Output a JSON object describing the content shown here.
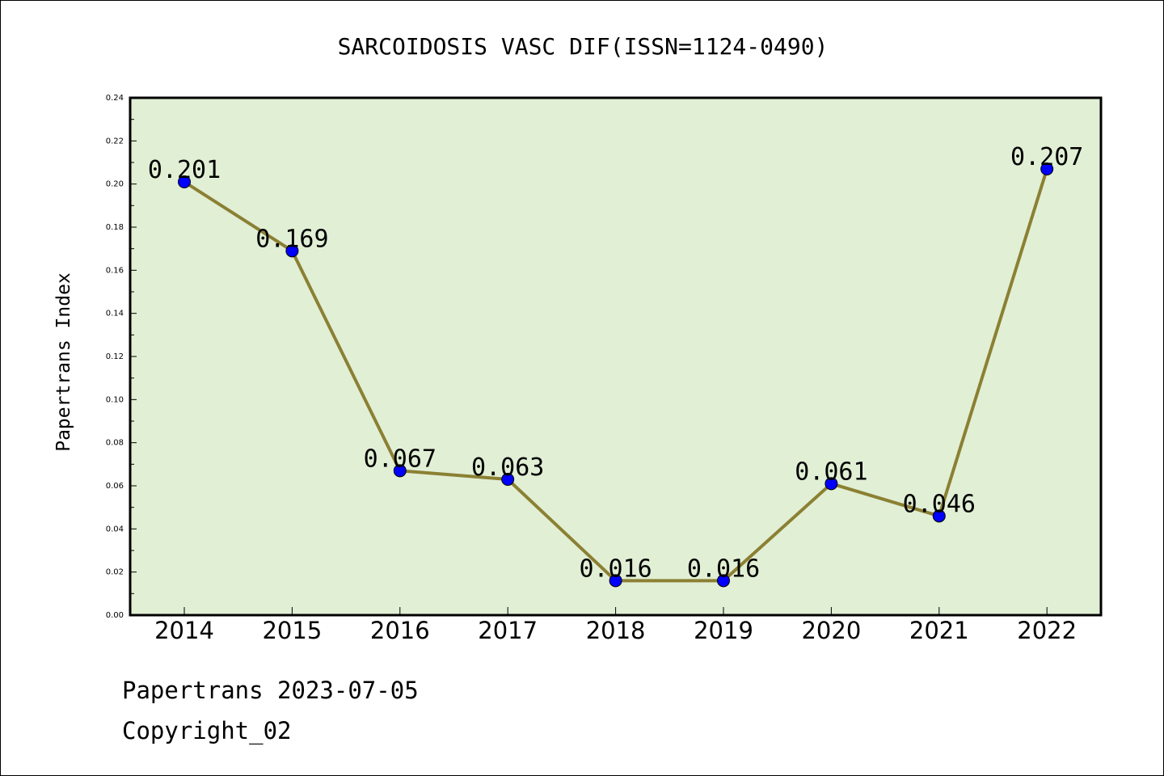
{
  "chart_data": {
    "type": "line",
    "title": "SARCOIDOSIS VASC DIF(ISSN=1124-0490)",
    "xlabel": "",
    "ylabel": "Papertrans Index",
    "categories": [
      "2014",
      "2015",
      "2016",
      "2017",
      "2018",
      "2019",
      "2020",
      "2021",
      "2022"
    ],
    "values": [
      0.201,
      0.169,
      0.067,
      0.063,
      0.016,
      0.016,
      0.061,
      0.046,
      0.207
    ],
    "data_labels": [
      "0.201",
      "0.169",
      "0.067",
      "0.063",
      "0.016",
      "0.016",
      "0.061",
      "0.046",
      "0.207"
    ],
    "ylim": [
      0,
      0.24
    ],
    "yticks": [
      "0.00",
      "0.02",
      "0.04",
      "0.06",
      "0.08",
      "0.10",
      "0.12",
      "0.14",
      "0.16",
      "0.18",
      "0.20",
      "0.22",
      "0.24"
    ],
    "grid": false,
    "colors": {
      "plot_background": "#e1efd5",
      "line": "#8b8033",
      "marker": "#0000ff"
    }
  },
  "footer": {
    "line1": "Papertrans 2023-07-05",
    "line2": "Copyright_02"
  }
}
